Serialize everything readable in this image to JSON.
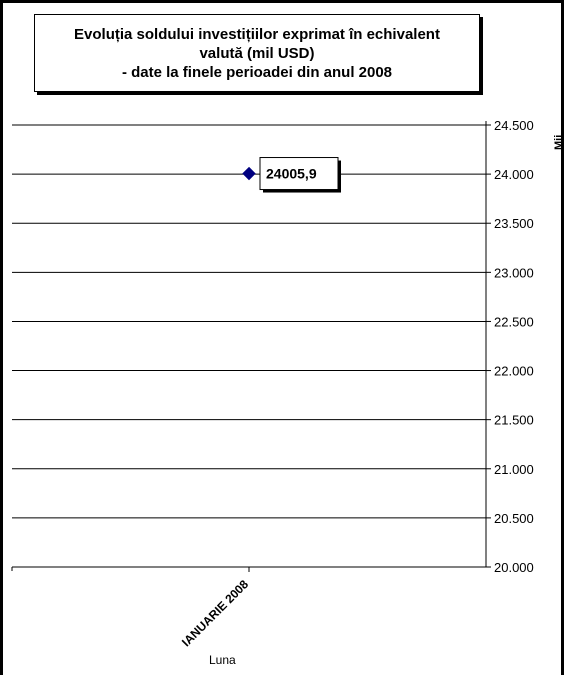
{
  "chart_data": {
    "type": "scatter",
    "title": "Evoluția soldului investițiilor exprimat în echivalent\nvalută (mil USD)\n- date la finele perioadei din anul 2008",
    "xlabel": "Luna",
    "ylabel": "Mii",
    "categories": [
      "IANUARIE 2008"
    ],
    "series": [
      {
        "values": [
          24005.9
        ]
      }
    ],
    "data_labels": [
      "24005,9"
    ],
    "ylim": [
      20000,
      24500
    ],
    "y_ticks": [
      {
        "value": 24500,
        "label": "24.500"
      },
      {
        "value": 24000,
        "label": "24.000"
      },
      {
        "value": 23500,
        "label": "23.500"
      },
      {
        "value": 23000,
        "label": "23.000"
      },
      {
        "value": 22500,
        "label": "22.500"
      },
      {
        "value": 22000,
        "label": "22.000"
      },
      {
        "value": 21500,
        "label": "21.500"
      },
      {
        "value": 21000,
        "label": "21.000"
      },
      {
        "value": 20500,
        "label": "20.500"
      },
      {
        "value": 20000,
        "label": "20.000"
      }
    ],
    "grid": true,
    "y_axis_side": "right",
    "colors": {
      "marker": "#000080",
      "grid": "#000000"
    }
  }
}
